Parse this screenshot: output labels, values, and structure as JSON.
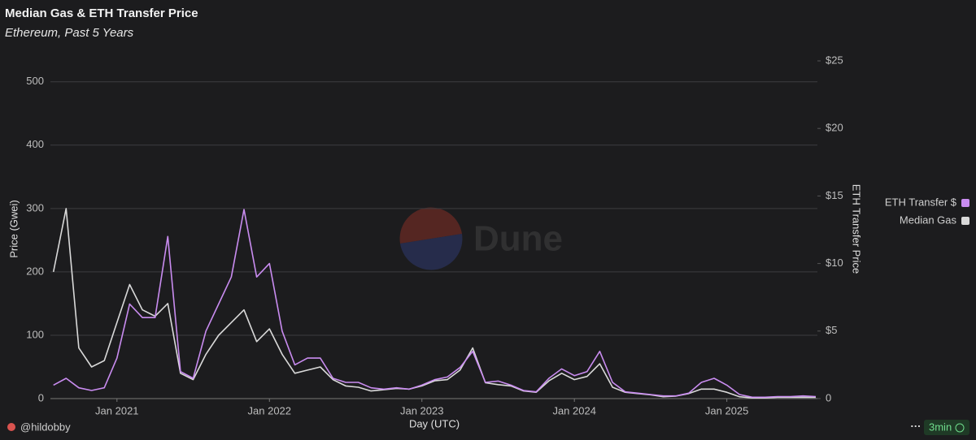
{
  "chart_data": {
    "type": "line",
    "title": "Median Gas & ETH Transfer Price",
    "subtitle": "Ethereum, Past 5 Years",
    "xlabel": "Day (UTC)",
    "ylabel": "Price (Gwei)",
    "y2label": "ETH Transfer Price",
    "watermark": "Dune",
    "author": "@hildobby",
    "refresh": "3min",
    "menu": "···",
    "x": [
      "2020-08",
      "2020-09",
      "2020-10",
      "2020-11",
      "2020-12",
      "2021-01",
      "2021-02",
      "2021-03",
      "2021-04",
      "2021-05",
      "2021-06",
      "2021-07",
      "2021-08",
      "2021-09",
      "2021-10",
      "2021-11",
      "2021-12",
      "2022-01",
      "2022-02",
      "2022-03",
      "2022-04",
      "2022-05",
      "2022-06",
      "2022-07",
      "2022-08",
      "2022-09",
      "2022-10",
      "2022-11",
      "2022-12",
      "2023-01",
      "2023-02",
      "2023-03",
      "2023-04",
      "2023-05",
      "2023-06",
      "2023-07",
      "2023-08",
      "2023-09",
      "2023-10",
      "2023-11",
      "2023-12",
      "2024-01",
      "2024-02",
      "2024-03",
      "2024-04",
      "2024-05",
      "2024-06",
      "2024-07",
      "2024-08",
      "2024-09",
      "2024-10",
      "2024-11",
      "2024-12",
      "2025-01",
      "2025-02",
      "2025-03",
      "2025-04",
      "2025-05",
      "2025-06",
      "2025-07",
      "2025-08"
    ],
    "series": [
      {
        "name": "ETH Transfer $",
        "color": "#c98cf0",
        "axis": "y2",
        "values": [
          1.0,
          1.5,
          0.8,
          0.6,
          0.8,
          3,
          7,
          6,
          6,
          12,
          2,
          1.5,
          5,
          7,
          9,
          14,
          9,
          10,
          5,
          2.5,
          3,
          3,
          1.5,
          1.2,
          1.2,
          0.8,
          0.7,
          0.8,
          0.7,
          1,
          1.4,
          1.6,
          2.3,
          3.5,
          1.2,
          1.3,
          1.0,
          0.6,
          0.5,
          1.5,
          2.2,
          1.7,
          2,
          3.5,
          1.2,
          0.5,
          0.4,
          0.3,
          0.2,
          0.2,
          0.4,
          1.2,
          1.5,
          1,
          0.3,
          0.1,
          0.1,
          0.15,
          0.15,
          0.2,
          0.15
        ]
      },
      {
        "name": "Median Gas",
        "color": "#d9d9d9",
        "values": [
          200,
          300,
          80,
          50,
          60,
          120,
          180,
          140,
          130,
          150,
          40,
          30,
          70,
          100,
          120,
          140,
          90,
          110,
          70,
          40,
          45,
          50,
          30,
          20,
          18,
          12,
          14,
          16,
          15,
          20,
          28,
          30,
          45,
          80,
          25,
          22,
          20,
          12,
          10,
          28,
          40,
          30,
          35,
          55,
          18,
          10,
          8,
          6,
          3,
          4,
          8,
          15,
          15,
          10,
          3,
          1,
          1,
          2,
          2,
          2,
          2
        ]
      }
    ],
    "ylim": [
      0,
      533
    ],
    "yticks": [
      0,
      100,
      200,
      300,
      400,
      500
    ],
    "y2lim": [
      0,
      25
    ],
    "y2ticks": [
      0,
      {
        "value": 5,
        "label": "$5"
      },
      {
        "value": 10,
        "label": "$10"
      },
      {
        "value": 15,
        "label": "$15"
      },
      {
        "value": 20,
        "label": "$20"
      },
      {
        "value": 25,
        "label": "$25"
      }
    ],
    "xticks": [
      {
        "value": "2021-01",
        "label": "Jan 2021"
      },
      {
        "value": "2022-01",
        "label": "Jan 2022"
      },
      {
        "value": "2023-01",
        "label": "Jan 2023"
      },
      {
        "value": "2024-01",
        "label": "Jan 2024"
      },
      {
        "value": "2025-01",
        "label": "Jan 2025"
      }
    ],
    "grid": true,
    "legend": "right"
  }
}
